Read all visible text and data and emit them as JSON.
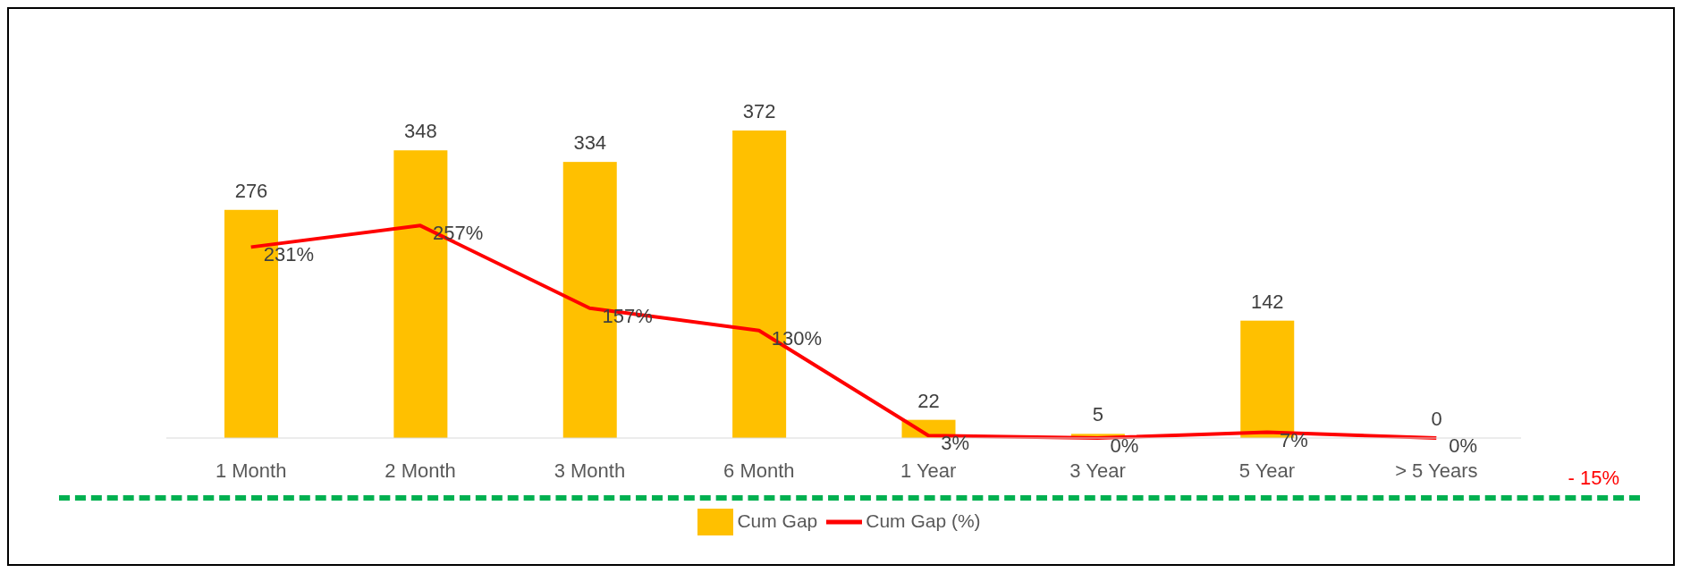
{
  "chart_data": {
    "type": "bar",
    "categories": [
      "1 Month",
      "2 Month",
      "3 Month",
      "6 Month",
      "1 Year",
      "3 Year",
      "5 Year",
      "> 5 Years"
    ],
    "series": [
      {
        "name": "Cum Gap",
        "color": "#ffc000",
        "values": [
          276,
          348,
          334,
          372,
          22,
          5,
          142,
          0
        ],
        "value_labels": [
          "276",
          "348",
          "334",
          "372",
          "22",
          "5",
          "142",
          "0"
        ]
      },
      {
        "name": "Cum Gap (%)",
        "type": "line",
        "axis": "y2",
        "color": "#ff0000",
        "values": [
          231,
          257,
          157,
          130,
          3,
          0,
          7,
          0
        ],
        "value_labels": [
          "231%",
          "257%",
          "157%",
          "130%",
          "3%",
          "0%",
          "7%",
          "0%"
        ]
      }
    ],
    "tick_labels": "x",
    "legend": "bottom",
    "marker": "none",
    "annotations": [
      "- 15%"
    ]
  }
}
